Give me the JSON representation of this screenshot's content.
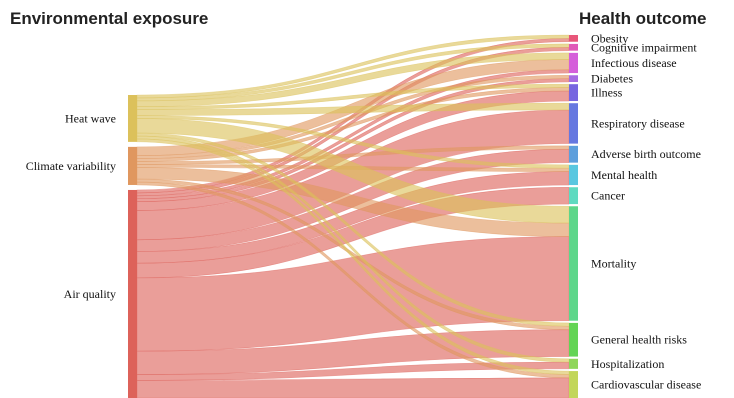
{
  "chart_data": {
    "type": "sankey",
    "left_header": "Environmental exposure",
    "right_header": "Health outcome",
    "sources": [
      {
        "name": "Heat wave",
        "color": "#dcc15b"
      },
      {
        "name": "Climate variability",
        "color": "#e0975f"
      },
      {
        "name": "Air quality",
        "color": "#dd625a"
      }
    ],
    "targets": [
      {
        "name": "Obesity",
        "color": "#e8567a"
      },
      {
        "name": "Cognitive impairment",
        "color": "#e05ab8"
      },
      {
        "name": "Infectious disease",
        "color": "#d55fda"
      },
      {
        "name": "Diabetes",
        "color": "#a76be3"
      },
      {
        "name": "Illness",
        "color": "#7766e0"
      },
      {
        "name": "Respiratory disease",
        "color": "#6678e0"
      },
      {
        "name": "Adverse birth outcome",
        "color": "#5e9fdc"
      },
      {
        "name": "Mental health",
        "color": "#59c7e0"
      },
      {
        "name": "Cancer",
        "color": "#5fdac0"
      },
      {
        "name": "Mortality",
        "color": "#5ed68a"
      },
      {
        "name": "General health risks",
        "color": "#63d455"
      },
      {
        "name": "Hospitalization",
        "color": "#8fd65a"
      },
      {
        "name": "Cardiovascular disease",
        "color": "#c2d65a"
      }
    ],
    "links": [
      {
        "source": "Heat wave",
        "target": "Obesity",
        "value": 1
      },
      {
        "source": "Heat wave",
        "target": "Cognitive impairment",
        "value": 1
      },
      {
        "source": "Heat wave",
        "target": "Infectious disease",
        "value": 2
      },
      {
        "source": "Heat wave",
        "target": "Illness",
        "value": 1
      },
      {
        "source": "Heat wave",
        "target": "Respiratory disease",
        "value": 2
      },
      {
        "source": "Heat wave",
        "target": "Mental health",
        "value": 1
      },
      {
        "source": "Heat wave",
        "target": "Mortality",
        "value": 5
      },
      {
        "source": "Heat wave",
        "target": "General health risks",
        "value": 1
      },
      {
        "source": "Heat wave",
        "target": "Hospitalization",
        "value": 1
      },
      {
        "source": "Heat wave",
        "target": "Cardiovascular disease",
        "value": 1
      },
      {
        "source": "Climate variability",
        "target": "Infectious disease",
        "value": 3
      },
      {
        "source": "Climate variability",
        "target": "Diabetes",
        "value": 1
      },
      {
        "source": "Climate variability",
        "target": "Illness",
        "value": 1
      },
      {
        "source": "Climate variability",
        "target": "Adverse birth outcome",
        "value": 1
      },
      {
        "source": "Climate variability",
        "target": "Mental health",
        "value": 1
      },
      {
        "source": "Climate variability",
        "target": "Mortality",
        "value": 4
      },
      {
        "source": "Climate variability",
        "target": "General health risks",
        "value": 1
      },
      {
        "source": "Climate variability",
        "target": "Cardiovascular disease",
        "value": 1
      },
      {
        "source": "Air quality",
        "target": "Obesity",
        "value": 1
      },
      {
        "source": "Air quality",
        "target": "Cognitive impairment",
        "value": 1
      },
      {
        "source": "Air quality",
        "target": "Infectious disease",
        "value": 1
      },
      {
        "source": "Air quality",
        "target": "Diabetes",
        "value": 1
      },
      {
        "source": "Air quality",
        "target": "Illness",
        "value": 3
      },
      {
        "source": "Air quality",
        "target": "Respiratory disease",
        "value": 10
      },
      {
        "source": "Air quality",
        "target": "Adverse birth outcome",
        "value": 4
      },
      {
        "source": "Air quality",
        "target": "Mental health",
        "value": 4
      },
      {
        "source": "Air quality",
        "target": "Cancer",
        "value": 5
      },
      {
        "source": "Air quality",
        "target": "Mortality",
        "value": 25
      },
      {
        "source": "Air quality",
        "target": "General health risks",
        "value": 8
      },
      {
        "source": "Air quality",
        "target": "Hospitalization",
        "value": 2
      },
      {
        "source": "Air quality",
        "target": "Cardiovascular disease",
        "value": 6
      }
    ]
  }
}
